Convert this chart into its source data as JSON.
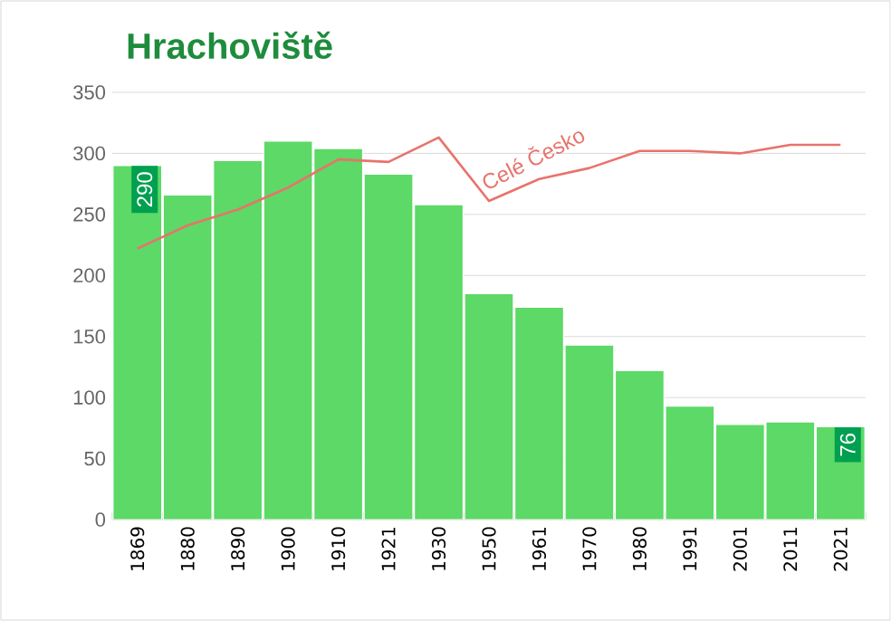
{
  "chart_data": {
    "type": "bar",
    "title": "Hrachoviště",
    "categories": [
      "1869",
      "1880",
      "1890",
      "1900",
      "1910",
      "1921",
      "1930",
      "1950",
      "1961",
      "1970",
      "1980",
      "1991",
      "2001",
      "2011",
      "2021"
    ],
    "series": [
      {
        "color": "#5cd966",
        "values": [
          290,
          266,
          294,
          310,
          304,
          283,
          258,
          185,
          174,
          143,
          122,
          93,
          78,
          80,
          76
        ],
        "value_labels": [
          "290",
          null,
          null,
          null,
          null,
          null,
          null,
          null,
          null,
          null,
          null,
          null,
          null,
          null,
          "76"
        ]
      },
      {
        "type": "line",
        "name": "Celé Česko",
        "color": "#e8736c",
        "values": [
          222,
          241,
          254,
          272,
          295,
          293,
          313,
          261,
          279,
          288,
          302,
          302,
          300,
          307,
          307
        ]
      }
    ],
    "ylim": [
      0,
      350
    ],
    "yticks": [
      0,
      50,
      100,
      150,
      200,
      250,
      300,
      350
    ],
    "grid": "y"
  }
}
